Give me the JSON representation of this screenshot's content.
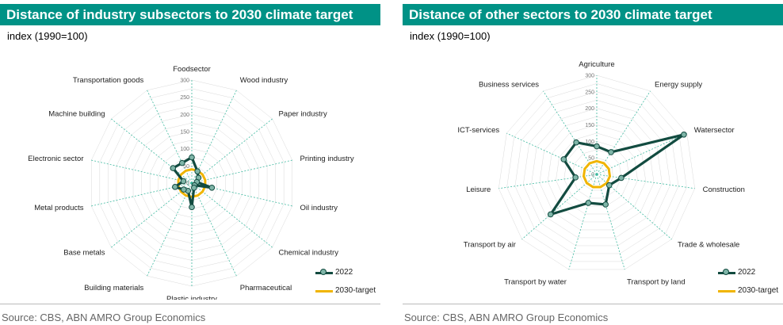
{
  "colors": {
    "title_bg": "#009286",
    "series_2022": "#124b40",
    "marker_fill": "#7fb5a8",
    "target": "#f0b400",
    "grid": "#3fb9a0"
  },
  "chart_data": [
    {
      "type": "radar",
      "title": "Distance of industry subsectors to 2030 climate target",
      "subtitle": "index (1990=100)",
      "source": "Source: CBS, ABN AMRO Group Economics",
      "rlim": [
        0,
        300
      ],
      "ticks": [
        0,
        50,
        100,
        150,
        200,
        250,
        300
      ],
      "tick_labels": [
        "0",
        "50",
        "100",
        "150",
        "200",
        "250",
        "300"
      ],
      "categories": [
        "Foodsector",
        "Wood industry",
        "Paper industry",
        "Printing industry",
        "Oil industry",
        "Chemical industry",
        "Pharmaceutical",
        "Plastic industry",
        "Building materials",
        "Base metals",
        "Metal products",
        "Electronic sector",
        "Machine building",
        "Transportation goods"
      ],
      "series": [
        {
          "name": "2022",
          "values": [
            75,
            38,
            25,
            15,
            60,
            10,
            15,
            70,
            25,
            30,
            50,
            25,
            70,
            65
          ]
        },
        {
          "name": "2030-target",
          "values": [
            40,
            40,
            40,
            40,
            40,
            40,
            40,
            40,
            40,
            40,
            40,
            40,
            40,
            40
          ]
        }
      ],
      "legend_position": "bottom-right",
      "grid": true
    },
    {
      "type": "radar",
      "title": "Distance of other sectors to 2030 climate target",
      "subtitle": "index (1990=100)",
      "source": "Source: CBS, ABN AMRO Group Economics",
      "rlim": [
        0,
        300
      ],
      "ticks": [
        0,
        50,
        100,
        150,
        200,
        250,
        300
      ],
      "tick_labels": [
        "0",
        "50",
        "100",
        "150",
        "200",
        "250",
        "300"
      ],
      "categories": [
        "Agriculture",
        "Energy supply",
        "Watersector",
        "Construction",
        "Trade & wholesale",
        "Transport by land",
        "Transport by water",
        "Transport by air",
        "Leisure",
        "ICT-services",
        "Business services"
      ],
      "series": [
        {
          "name": "2022",
          "values": [
            85,
            80,
            290,
            75,
            50,
            95,
            90,
            185,
            65,
            110,
            115
          ]
        },
        {
          "name": "2030-target",
          "values": [
            40,
            40,
            40,
            40,
            40,
            40,
            40,
            40,
            40,
            40,
            40
          ]
        }
      ],
      "legend_position": "bottom-right",
      "grid": true
    }
  ]
}
